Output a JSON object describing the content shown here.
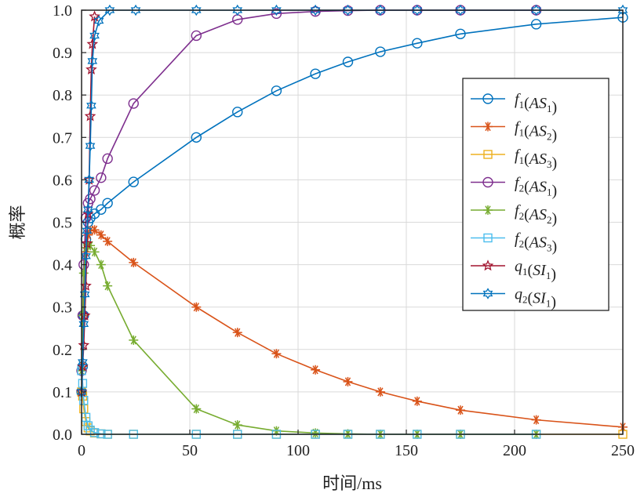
{
  "chart_data": {
    "type": "line",
    "title": "",
    "xlabel": "时间/ms",
    "ylabel": "概率",
    "xlim": [
      0,
      250
    ],
    "ylim": [
      0,
      1.0
    ],
    "xticks": [
      0,
      50,
      100,
      150,
      200,
      250
    ],
    "yticks": [
      0.0,
      0.1,
      0.2,
      0.3,
      0.4,
      0.5,
      0.6,
      0.7,
      0.8,
      0.9,
      1.0
    ],
    "ytick_labels": [
      "0.0",
      "0.1",
      "0.2",
      "0.3",
      "0.4",
      "0.5",
      "0.6",
      "0.7",
      "0.8",
      "0.9",
      "1.0"
    ],
    "grid": true,
    "legend_position": "right",
    "series": [
      {
        "legend": {
          "fn": "f",
          "fsub": "1",
          "arg": "AS",
          "asub": "1"
        },
        "color": "#0072BD",
        "marker": "circle",
        "x": [
          0,
          0.5,
          1,
          2,
          3,
          4,
          6,
          9,
          12,
          24,
          53,
          72,
          90,
          108,
          123,
          138,
          155,
          175,
          210,
          250
        ],
        "y": [
          0.1,
          0.16,
          0.28,
          0.46,
          0.5,
          0.51,
          0.52,
          0.53,
          0.545,
          0.595,
          0.7,
          0.76,
          0.81,
          0.85,
          0.878,
          0.902,
          0.922,
          0.944,
          0.967,
          0.983
        ]
      },
      {
        "legend": {
          "fn": "f",
          "fsub": "1",
          "arg": "AS",
          "asub": "2"
        },
        "color": "#D95319",
        "marker": "asterisk",
        "x": [
          0,
          0.5,
          1,
          2,
          3,
          4,
          6,
          9,
          12,
          24,
          53,
          72,
          90,
          108,
          123,
          138,
          155,
          175,
          210,
          250
        ],
        "y": [
          0.1,
          0.16,
          0.28,
          0.43,
          0.47,
          0.48,
          0.482,
          0.47,
          0.455,
          0.405,
          0.3,
          0.24,
          0.19,
          0.152,
          0.124,
          0.1,
          0.078,
          0.057,
          0.034,
          0.017
        ]
      },
      {
        "legend": {
          "fn": "f",
          "fsub": "1",
          "arg": "AS",
          "asub": "3"
        },
        "color": "#EDB120",
        "marker": "square",
        "x": [
          0,
          0.5,
          1,
          2,
          3,
          4,
          6,
          9,
          12,
          24,
          53,
          72,
          90,
          108,
          123,
          138,
          155,
          175,
          210,
          250
        ],
        "y": [
          0.1,
          0.09,
          0.06,
          0.03,
          0.015,
          0.008,
          0.003,
          0.001,
          0.0,
          0.0,
          0.0,
          0.0,
          0.0,
          0.0,
          0.0,
          0.0,
          0.0,
          0.0,
          0.0,
          0.0
        ]
      },
      {
        "legend": {
          "fn": "f",
          "fsub": "2",
          "arg": "AS",
          "asub": "1"
        },
        "color": "#7E2F8E",
        "marker": "circle",
        "x": [
          0,
          0.5,
          1,
          2,
          3,
          4,
          6,
          9,
          12,
          24,
          53,
          72,
          90,
          108,
          123,
          138,
          155,
          175,
          210
        ],
        "y": [
          0.15,
          0.28,
          0.4,
          0.51,
          0.545,
          0.555,
          0.575,
          0.605,
          0.65,
          0.78,
          0.94,
          0.978,
          0.992,
          0.997,
          0.999,
          1.0,
          1.0,
          1.0,
          1.0
        ]
      },
      {
        "legend": {
          "fn": "f",
          "fsub": "2",
          "arg": "AS",
          "asub": "2"
        },
        "color": "#77AC30",
        "marker": "asterisk",
        "x": [
          0,
          0.5,
          1,
          2,
          3,
          4,
          6,
          9,
          12,
          24,
          53,
          72,
          90,
          108,
          123,
          138,
          155,
          175,
          210
        ],
        "y": [
          0.15,
          0.28,
          0.38,
          0.44,
          0.445,
          0.445,
          0.43,
          0.4,
          0.35,
          0.222,
          0.06,
          0.022,
          0.008,
          0.003,
          0.001,
          0.0,
          0.0,
          0.0,
          0.0
        ]
      },
      {
        "legend": {
          "fn": "f",
          "fsub": "2",
          "arg": "AS",
          "asub": "3"
        },
        "color": "#4DBEEE",
        "marker": "square",
        "x": [
          0,
          0.5,
          1,
          2,
          3,
          4,
          6,
          9,
          12,
          24,
          53,
          72,
          90,
          108,
          123,
          138,
          155,
          175,
          210
        ],
        "y": [
          0.15,
          0.12,
          0.08,
          0.04,
          0.02,
          0.01,
          0.004,
          0.001,
          0.0,
          0.0,
          0.0,
          0.0,
          0.0,
          0.0,
          0.0,
          0.0,
          0.0,
          0.0,
          0.0
        ]
      },
      {
        "legend": {
          "fn": "q",
          "fsub": "1",
          "arg": "SI",
          "asub": "1"
        },
        "color": "#A2142F",
        "marker": "star",
        "x": [
          0,
          0.5,
          1,
          1.5,
          2,
          2.5,
          3,
          3.5,
          4,
          4.5,
          5,
          6
        ],
        "y": [
          0.1,
          0.16,
          0.21,
          0.28,
          0.35,
          0.45,
          0.52,
          0.6,
          0.75,
          0.86,
          0.92,
          0.985
        ]
      },
      {
        "legend": {
          "fn": "q",
          "fsub": "2",
          "arg": "SI",
          "asub": "1"
        },
        "color": "#0072BD",
        "marker": "hexagram",
        "x": [
          0,
          0.5,
          1,
          1.5,
          2,
          2.5,
          3,
          3.5,
          4,
          4.5,
          5,
          6,
          8,
          13,
          25,
          53,
          72,
          90,
          108,
          123,
          138,
          155,
          175,
          210,
          250
        ],
        "y": [
          0.1,
          0.17,
          0.26,
          0.33,
          0.42,
          0.48,
          0.53,
          0.6,
          0.68,
          0.775,
          0.88,
          0.94,
          0.975,
          1.0,
          1.0,
          1.0,
          1.0,
          1.0,
          1.0,
          1.0,
          1.0,
          1.0,
          1.0,
          1.0,
          1.0
        ]
      }
    ]
  }
}
